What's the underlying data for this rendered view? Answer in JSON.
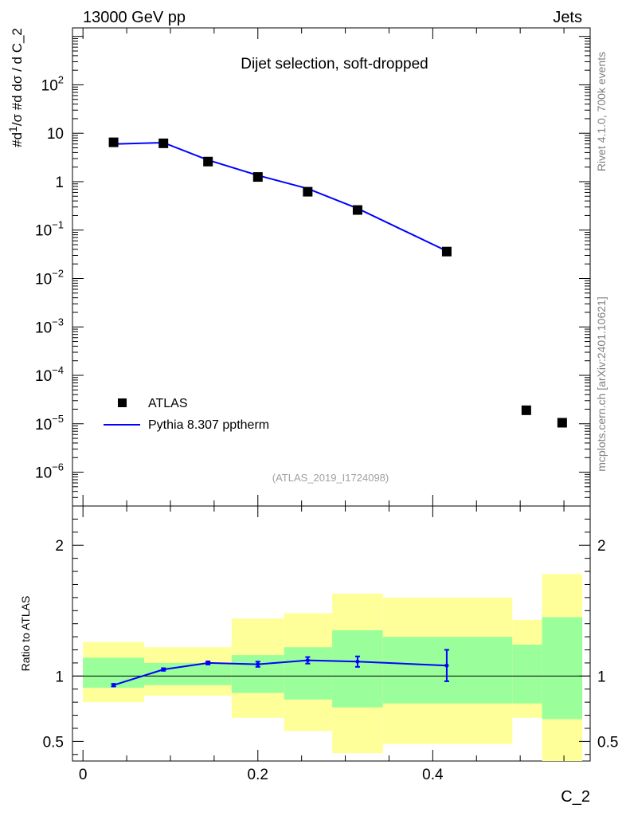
{
  "header": {
    "left": "13000 GeV pp",
    "right": "Jets"
  },
  "side_labels": {
    "rivet": "Rivet 4.1.0,  700k events",
    "mcplots": "mcplots.cern.ch [arXiv:2401.10621]"
  },
  "chart_data": [
    {
      "type": "scatter",
      "panel": "main",
      "title": "Dijet selection, soft-dropped",
      "reference_label": "(ATLAS_2019_I1724098)",
      "ylabel": "#d¹⁄σ #d dσ / d C_2",
      "yscale": "log",
      "xlim": [
        -0.012,
        0.58
      ],
      "ylim": [
        2e-07,
        1500
      ],
      "y_ticks": [
        {
          "v": 1e-06,
          "b": "10",
          "e": "−6"
        },
        {
          "v": 1e-05,
          "b": "10",
          "e": "−5"
        },
        {
          "v": 0.0001,
          "b": "10",
          "e": "−4"
        },
        {
          "v": 0.001,
          "b": "10",
          "e": "−3"
        },
        {
          "v": 0.01,
          "b": "10",
          "e": "−2"
        },
        {
          "v": 0.1,
          "b": "10",
          "e": "−1"
        },
        {
          "v": 1,
          "b": "1",
          "e": ""
        },
        {
          "v": 10,
          "b": "10",
          "e": ""
        },
        {
          "v": 100,
          "b": "10",
          "e": "2"
        }
      ],
      "legend": [
        {
          "label": "ATLAS",
          "kind": "marker"
        },
        {
          "label": "Pythia 8.307 pptherm",
          "kind": "line",
          "color": "#0000ff"
        }
      ],
      "series": [
        {
          "name": "ATLAS",
          "x": [
            0.035,
            0.092,
            0.143,
            0.2,
            0.257,
            0.314,
            0.416,
            0.507,
            0.548
          ],
          "y": [
            6.5,
            6.2,
            2.6,
            1.25,
            0.62,
            0.26,
            0.036,
            1.9e-05,
            1.05e-05
          ]
        },
        {
          "name": "Pythia 8.307 pptherm",
          "color": "#0000ff",
          "x": [
            0.035,
            0.092,
            0.143,
            0.2,
            0.257,
            0.314,
            0.416
          ],
          "y": [
            6.0,
            6.4,
            2.8,
            1.35,
            0.72,
            0.28,
            0.037
          ]
        }
      ]
    },
    {
      "type": "area",
      "panel": "ratio",
      "ylabel": "Ratio to ATLAS",
      "xlabel": "C_2",
      "xlim": [
        -0.012,
        0.58
      ],
      "ylim": [
        0.35,
        2.3
      ],
      "x_ticks": [
        0,
        0.2,
        0.4
      ],
      "y_ticks": [
        0.5,
        1,
        2
      ],
      "reference_line": 1,
      "uncertainty_bins": [
        {
          "x0": 0.0,
          "x1": 0.07,
          "yellow": [
            0.8,
            1.26
          ],
          "green": [
            0.91,
            1.14
          ]
        },
        {
          "x0": 0.07,
          "x1": 0.17,
          "yellow": [
            0.85,
            1.22
          ],
          "green": [
            0.93,
            1.1
          ]
        },
        {
          "x0": 0.17,
          "x1": 0.23,
          "yellow": [
            0.68,
            1.44
          ],
          "green": [
            0.87,
            1.16
          ]
        },
        {
          "x0": 0.23,
          "x1": 0.285,
          "yellow": [
            0.58,
            1.48
          ],
          "green": [
            0.82,
            1.22
          ]
        },
        {
          "x0": 0.285,
          "x1": 0.343,
          "yellow": [
            0.41,
            1.63
          ],
          "green": [
            0.76,
            1.35
          ]
        },
        {
          "x0": 0.343,
          "x1": 0.491,
          "yellow": [
            0.48,
            1.6
          ],
          "green": [
            0.79,
            1.3
          ]
        },
        {
          "x0": 0.491,
          "x1": 0.525,
          "yellow": [
            0.68,
            1.43
          ],
          "green": [
            0.79,
            1.24
          ]
        },
        {
          "x0": 0.525,
          "x1": 0.571,
          "yellow": [
            0.3,
            1.78
          ],
          "green": [
            0.67,
            1.45
          ]
        }
      ],
      "series": [
        {
          "name": "Pythia 8.307 pptherm",
          "color": "#0000ff",
          "x": [
            0.035,
            0.092,
            0.143,
            0.2,
            0.257,
            0.314,
            0.416
          ],
          "y": [
            0.93,
            1.05,
            1.1,
            1.09,
            1.12,
            1.11,
            1.08
          ],
          "err": [
            0.01,
            0.01,
            0.012,
            0.02,
            0.025,
            0.04,
            0.12
          ]
        }
      ]
    }
  ]
}
